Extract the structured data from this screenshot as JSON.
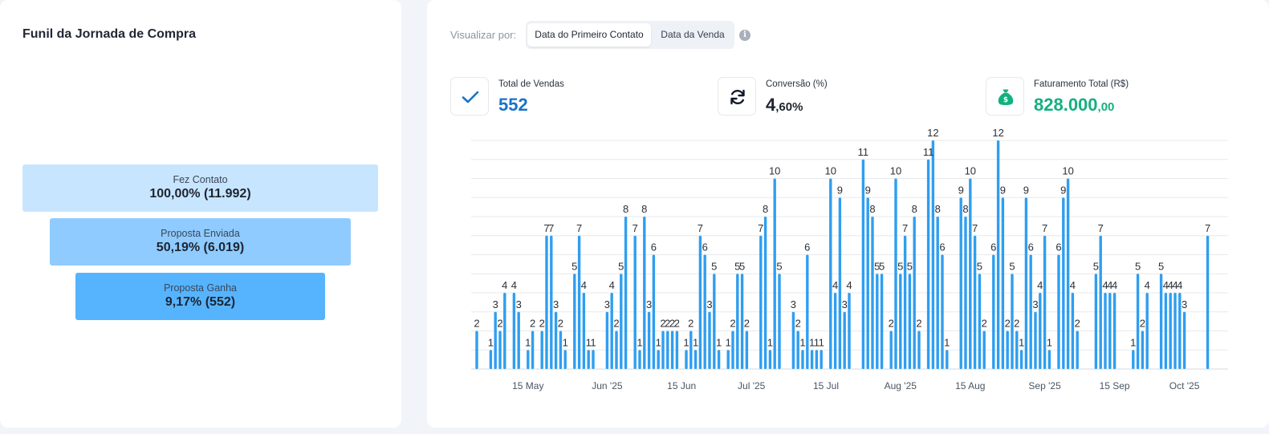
{
  "funnel": {
    "title": "Funil da Jornada de Compra",
    "stages": [
      {
        "label": "Fez Contato",
        "value": "100,00% (11.992)",
        "color": "#c8e5ff"
      },
      {
        "label": "Proposta Enviada",
        "value": "50,19% (6.019)",
        "color": "#8fcbff"
      },
      {
        "label": "Proposta Ganha",
        "value": "9,17% (552)",
        "color": "#56b4ff"
      }
    ]
  },
  "view": {
    "label": "Visualizar por:",
    "options": [
      "Data do Primeiro Contato",
      "Data da Venda"
    ],
    "selected": "Data do Primeiro Contato",
    "info_icon": "info-icon"
  },
  "kpis": [
    {
      "icon": "check-icon",
      "label": "Total de Vendas",
      "main": "552",
      "suffix": "",
      "color": "#1a73c8"
    },
    {
      "icon": "refresh-icon",
      "label": "Conversão (%)",
      "main": "4",
      "suffix": ",60%",
      "color": "#1e2530"
    },
    {
      "icon": "money-bag-icon",
      "label": "Faturamento Total (R$)",
      "main": "828.000",
      "suffix": ",00",
      "color": "#13b07f"
    }
  ],
  "chart_data": {
    "type": "bar",
    "bar_color": "#2f9ef0",
    "ylim": [
      0,
      12
    ],
    "grid": true,
    "values": [
      2,
      0,
      0,
      1,
      3,
      2,
      4,
      0,
      4,
      3,
      0,
      1,
      2,
      0,
      2,
      7,
      7,
      3,
      2,
      1,
      0,
      5,
      7,
      4,
      1,
      1,
      0,
      0,
      3,
      4,
      2,
      5,
      8,
      0,
      7,
      1,
      8,
      3,
      6,
      1,
      2,
      2,
      2,
      2,
      0,
      1,
      2,
      1,
      7,
      6,
      3,
      5,
      1,
      0,
      1,
      2,
      5,
      5,
      2,
      0,
      0,
      7,
      8,
      1,
      10,
      5,
      0,
      0,
      3,
      2,
      1,
      6,
      1,
      1,
      1,
      0,
      10,
      4,
      9,
      3,
      4,
      0,
      0,
      11,
      9,
      8,
      5,
      5,
      0,
      2,
      10,
      5,
      7,
      5,
      8,
      2,
      0,
      11,
      12,
      8,
      6,
      1,
      0,
      0,
      9,
      8,
      10,
      7,
      5,
      2,
      0,
      6,
      12,
      9,
      2,
      5,
      2,
      1,
      9,
      6,
      3,
      4,
      7,
      1,
      0,
      6,
      9,
      10,
      4,
      2,
      0,
      0,
      0,
      5,
      7,
      4,
      4,
      4,
      0,
      0,
      0,
      1,
      5,
      2,
      4,
      0,
      0,
      5,
      4,
      4,
      4,
      4,
      3,
      0,
      0,
      0,
      0,
      7
    ],
    "x_ticks": [
      {
        "label": "15 May",
        "index": 11
      },
      {
        "label": "Jun '25",
        "index": 28
      },
      {
        "label": "15 Jun",
        "index": 44
      },
      {
        "label": "Jul '25",
        "index": 59
      },
      {
        "label": "15 Jul",
        "index": 75
      },
      {
        "label": "Aug '25",
        "index": 91
      },
      {
        "label": "15 Aug",
        "index": 106
      },
      {
        "label": "Sep '25",
        "index": 122
      },
      {
        "label": "15 Sep",
        "index": 137
      },
      {
        "label": "Oct '25",
        "index": 152
      }
    ]
  }
}
